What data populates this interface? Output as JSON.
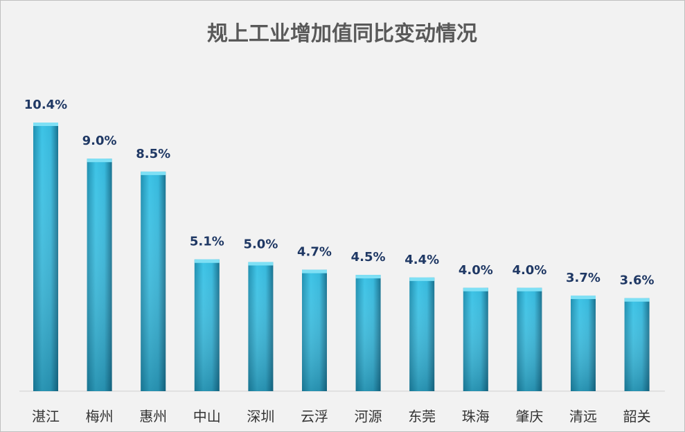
{
  "chart_data": {
    "type": "bar",
    "title": "规上工业增加值同比变动情况",
    "categories": [
      "湛江",
      "梅州",
      "惠州",
      "中山",
      "深圳",
      "云浮",
      "河源",
      "东莞",
      "珠海",
      "肇庆",
      "清远",
      "韶关"
    ],
    "values": [
      10.4,
      9.0,
      8.5,
      5.1,
      5.0,
      4.7,
      4.5,
      4.4,
      4.0,
      4.0,
      3.7,
      3.6
    ],
    "value_labels": [
      "10.4%",
      "9.0%",
      "8.5%",
      "5.1%",
      "5.0%",
      "4.7%",
      "4.5%",
      "4.4%",
      "4.0%",
      "4.0%",
      "3.7%",
      "3.6%"
    ],
    "color": "#2fb3d6"
  }
}
